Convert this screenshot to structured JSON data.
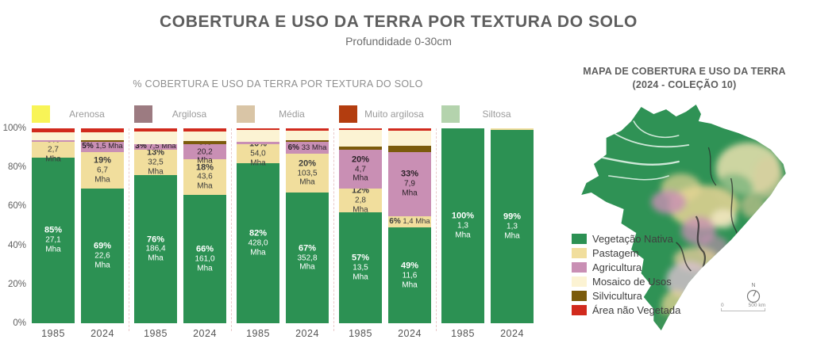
{
  "header": {
    "title": "COBERTURA E USO DA TERRA POR TEXTURA DO SOLO",
    "subtitle": "Profundidade 0-30cm"
  },
  "chart_data": {
    "type": "bar",
    "stacked": true,
    "title": "% COBERTURA E USO DA TERRA POR TEXTURA DO SOLO",
    "ylabel": "%",
    "ylim": [
      0,
      100
    ],
    "y_ticks": [
      "0%",
      "20%",
      "40%",
      "60%",
      "80%",
      "100%"
    ],
    "grid": false,
    "legend_position": "top",
    "classes": [
      {
        "name": "Vegetação Nativa",
        "color": "#2c9153",
        "text": "#ffffff"
      },
      {
        "name": "Pastagem",
        "color": "#f1de9d",
        "text": "#3c3c3c"
      },
      {
        "name": "Agricultura",
        "color": "#c98fb4",
        "text": "#2b2228"
      },
      {
        "name": "Mosaico de Usos",
        "color": "#fcf3d3",
        "text": "#3c3c3c"
      },
      {
        "name": "Silvicultura",
        "color": "#7b5b0c",
        "text": "#ffffff"
      },
      {
        "name": "Área não Vegetada",
        "color": "#d12a1d",
        "text": "#ffffff"
      }
    ],
    "groups": [
      {
        "texture": "Arenosa",
        "swatch": "#f8f457",
        "bars": [
          {
            "year": "1985",
            "segments": [
              {
                "class": 0,
                "pct": 85,
                "pct_label": "85%",
                "mha_label": "27,1 Mha"
              },
              {
                "class": 1,
                "pct": 8,
                "pct_label": "8%",
                "mha_label": "2,7 Mha"
              },
              {
                "class": 2,
                "pct": 1
              },
              {
                "class": 3,
                "pct": 4
              },
              {
                "class": 5,
                "pct": 2
              }
            ]
          },
          {
            "year": "2024",
            "segments": [
              {
                "class": 0,
                "pct": 69,
                "pct_label": "69%",
                "mha_label": "22,6 Mha"
              },
              {
                "class": 1,
                "pct": 19,
                "pct_label": "19%",
                "mha_label": "6,7 Mha"
              },
              {
                "class": 2,
                "pct": 5,
                "pct_label": "5%",
                "mha_label": "1,5 Mha",
                "inline": true
              },
              {
                "class": 4,
                "pct": 1
              },
              {
                "class": 3,
                "pct": 4
              },
              {
                "class": 5,
                "pct": 2
              }
            ]
          }
        ]
      },
      {
        "texture": "Argilosa",
        "swatch": "#9c7b81",
        "bars": [
          {
            "year": "1985",
            "segments": [
              {
                "class": 0,
                "pct": 76,
                "pct_label": "76%",
                "mha_label": "186,4 Mha"
              },
              {
                "class": 1,
                "pct": 13,
                "pct_label": "13%",
                "mha_label": "32,5 Mha"
              },
              {
                "class": 2,
                "pct": 3,
                "pct_label": "3%",
                "mha_label": "7,5 Mha",
                "inline": true
              },
              {
                "class": 3,
                "pct": 6.5
              },
              {
                "class": 5,
                "pct": 1.5
              }
            ]
          },
          {
            "year": "2024",
            "segments": [
              {
                "class": 0,
                "pct": 66,
                "pct_label": "66%",
                "mha_label": "161,0 Mha"
              },
              {
                "class": 1,
                "pct": 18,
                "pct_label": "18%",
                "mha_label": "43,6 Mha"
              },
              {
                "class": 2,
                "pct": 8,
                "pct_label": "8%",
                "mha_label": "20,2 Mha"
              },
              {
                "class": 4,
                "pct": 1.5
              },
              {
                "class": 3,
                "pct": 5
              },
              {
                "class": 5,
                "pct": 1.5
              }
            ]
          }
        ]
      },
      {
        "texture": "Média",
        "swatch": "#d9c5a6",
        "bars": [
          {
            "year": "1985",
            "segments": [
              {
                "class": 0,
                "pct": 82,
                "pct_label": "82%",
                "mha_label": "428,0 Mha"
              },
              {
                "class": 1,
                "pct": 10,
                "pct_label": "10%",
                "mha_label": "54,0 Mha"
              },
              {
                "class": 2,
                "pct": 1
              },
              {
                "class": 3,
                "pct": 6
              },
              {
                "class": 5,
                "pct": 1
              }
            ]
          },
          {
            "year": "2024",
            "segments": [
              {
                "class": 0,
                "pct": 67,
                "pct_label": "67%",
                "mha_label": "352,8 Mha"
              },
              {
                "class": 1,
                "pct": 20,
                "pct_label": "20%",
                "mha_label": "103,5 Mha"
              },
              {
                "class": 2,
                "pct": 6,
                "pct_label": "6%",
                "mha_label": "33 Mha",
                "inline": true
              },
              {
                "class": 4,
                "pct": 1
              },
              {
                "class": 3,
                "pct": 5
              },
              {
                "class": 5,
                "pct": 1
              }
            ]
          }
        ]
      },
      {
        "texture": "Muito argilosa",
        "swatch": "#b33d0f",
        "bars": [
          {
            "year": "1985",
            "segments": [
              {
                "class": 0,
                "pct": 57,
                "pct_label": "57%",
                "mha_label": "13,5 Mha"
              },
              {
                "class": 1,
                "pct": 12,
                "pct_label": "12%",
                "mha_label": "2,8 Mha"
              },
              {
                "class": 2,
                "pct": 20,
                "pct_label": "20%",
                "mha_label": "4,7 Mha"
              },
              {
                "class": 4,
                "pct": 1.5
              },
              {
                "class": 3,
                "pct": 8.5
              },
              {
                "class": 5,
                "pct": 1
              }
            ]
          },
          {
            "year": "2024",
            "segments": [
              {
                "class": 0,
                "pct": 49,
                "pct_label": "49%",
                "mha_label": "11,6 Mha"
              },
              {
                "class": 1,
                "pct": 6,
                "pct_label": "6%",
                "mha_label": "1,4 Mha",
                "inline": true
              },
              {
                "class": 2,
                "pct": 33,
                "pct_label": "33%",
                "mha_label": "7,9 Mha"
              },
              {
                "class": 4,
                "pct": 3
              },
              {
                "class": 3,
                "pct": 8
              },
              {
                "class": 5,
                "pct": 1
              }
            ]
          }
        ]
      },
      {
        "texture": "Siltosa",
        "swatch": "#b4d3ad",
        "bars": [
          {
            "year": "1985",
            "segments": [
              {
                "class": 0,
                "pct": 100,
                "pct_label": "100%",
                "mha_label": "1,3 Mha"
              }
            ]
          },
          {
            "year": "2024",
            "segments": [
              {
                "class": 0,
                "pct": 99,
                "pct_label": "99%",
                "mha_label": "1,3 Mha"
              },
              {
                "class": 1,
                "pct": 1
              }
            ]
          }
        ]
      }
    ]
  },
  "map": {
    "title_line1": "MAPA DE COBERTURA E USO DA TERRA",
    "title_line2": "(2024 - COLEÇÃO 10)",
    "compass_label": "N",
    "scale_zero": "0",
    "scale_label": "500 km"
  }
}
